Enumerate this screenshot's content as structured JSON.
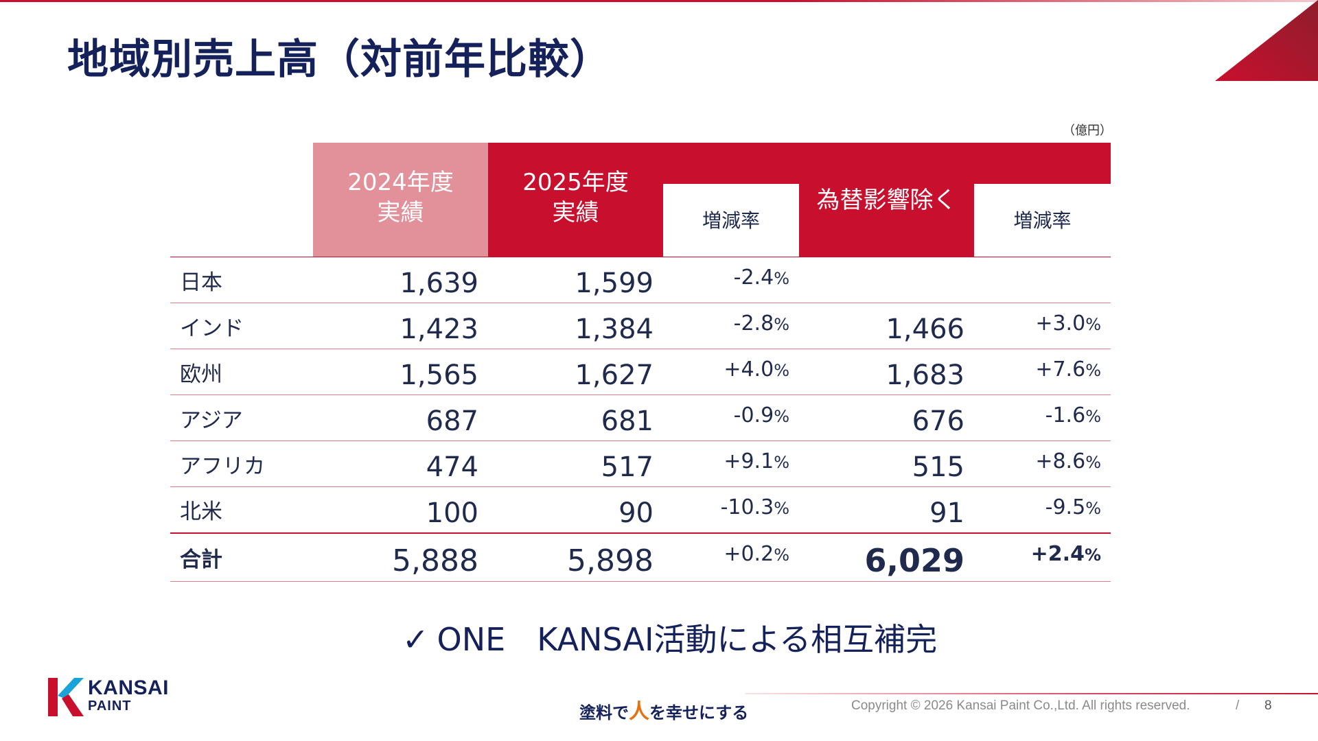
{
  "slide": {
    "title": "地域別売上高（対前年比較）",
    "unit": "（億円）"
  },
  "table": {
    "headers": {
      "y2024_line1": "2024年度",
      "y2024_line2": "実績",
      "y2025_line1": "2025年度",
      "y2025_line2": "実績",
      "rate": "増減率",
      "ex_fx": "為替影響除く",
      "rate_ex_fx": "増減率"
    },
    "rows": [
      {
        "region": "日本",
        "y2024": "1,639",
        "y2025": "1,599",
        "rate": "-2.4",
        "rate_pct": "%",
        "ex_fx": "",
        "rate_ex_fx": "",
        "rate_ex_fx_pct": ""
      },
      {
        "region": "インド",
        "y2024": "1,423",
        "y2025": "1,384",
        "rate": "-2.8",
        "rate_pct": "%",
        "ex_fx": "1,466",
        "rate_ex_fx": "+3.0",
        "rate_ex_fx_pct": "%"
      },
      {
        "region": "欧州",
        "y2024": "1,565",
        "y2025": "1,627",
        "rate": "+4.0",
        "rate_pct": "%",
        "ex_fx": "1,683",
        "rate_ex_fx": "+7.6",
        "rate_ex_fx_pct": "%"
      },
      {
        "region": "アジア",
        "y2024": "687",
        "y2025": "681",
        "rate": "-0.9",
        "rate_pct": "%",
        "ex_fx": "676",
        "rate_ex_fx": "-1.6",
        "rate_ex_fx_pct": "%"
      },
      {
        "region": "アフリカ",
        "y2024": "474",
        "y2025": "517",
        "rate": "+9.1",
        "rate_pct": "%",
        "ex_fx": "515",
        "rate_ex_fx": "+8.6",
        "rate_ex_fx_pct": "%"
      },
      {
        "region": "北米",
        "y2024": "100",
        "y2025": "90",
        "rate": "-10.3",
        "rate_pct": "%",
        "ex_fx": "91",
        "rate_ex_fx": "-9.5",
        "rate_ex_fx_pct": "%"
      }
    ],
    "total": {
      "region": "合計",
      "y2024": "5,888",
      "y2025": "5,898",
      "rate": "+0.2",
      "rate_pct": "%",
      "ex_fx": "6,029",
      "rate_ex_fx": "+2.4",
      "rate_ex_fx_pct": "%"
    }
  },
  "note": {
    "check": "✓",
    "text": "ONE　KANSAI活動による相互補完"
  },
  "footer": {
    "logo_line1": "KANSAI",
    "logo_line2": "PAINT",
    "slogan_pre": "塗料で",
    "slogan_hito": "人",
    "slogan_post": "を幸せにする",
    "copyright": "Copyright © 2026 Kansai Paint Co.,Ltd. All rights reserved.",
    "separator": "/",
    "page_number": "8"
  },
  "colors": {
    "brand_red": "#c8102e",
    "pink_header": "#e2919a",
    "navy_text": "#14215a",
    "slogan_orange": "#e8710f"
  }
}
